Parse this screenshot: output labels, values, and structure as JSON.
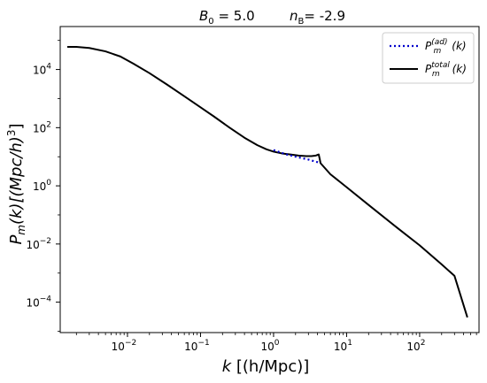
{
  "chart_data": {
    "type": "line",
    "title": {
      "left_symbol": "B",
      "left_sub": "0",
      "left_rest": " = 5.0",
      "right_symbol": "n",
      "right_sub": "B",
      "right_rest": "= -2.9"
    },
    "xlabel": {
      "symbol": "k",
      "units": "[(h/Mpc)]"
    },
    "ylabel": {
      "symbol": "P",
      "sub": "m",
      "text": "(k)[(Mpc/h)",
      "sup": "3",
      "end": "]"
    },
    "x_scale": "log",
    "y_scale": "log",
    "xlim": [
      0.0012,
      650
    ],
    "ylim": [
      9e-06,
      300000
    ],
    "x_ticks": [
      {
        "value": 0.01,
        "base": "10",
        "exp": "−2"
      },
      {
        "value": 0.1,
        "base": "10",
        "exp": "−1"
      },
      {
        "value": 1,
        "base": "10",
        "exp": "0"
      },
      {
        "value": 10,
        "base": "10",
        "exp": "1"
      },
      {
        "value": 100,
        "base": "10",
        "exp": "2"
      }
    ],
    "y_ticks": [
      {
        "value": 0.0001,
        "base": "10",
        "exp": "−4"
      },
      {
        "value": 0.01,
        "base": "10",
        "exp": "−2"
      },
      {
        "value": 1,
        "base": "10",
        "exp": "0"
      },
      {
        "value": 100,
        "base": "10",
        "exp": "2"
      },
      {
        "value": 10000,
        "base": "10",
        "exp": "4"
      }
    ],
    "legend_position": "top-right",
    "series": [
      {
        "name_base": "P",
        "name_sub": "m",
        "name_sup": "(ad)",
        "name_end": "(k)",
        "color": "#0000cc",
        "style": "dotted",
        "x": [
          1.0,
          1.5,
          2.2,
          3.0,
          4.0,
          4.4
        ],
        "y": [
          17,
          12,
          9.5,
          8,
          6.5,
          6
        ]
      },
      {
        "name_base": "P",
        "name_sub": "m",
        "name_sup": "total",
        "name_end": "(k)",
        "color": "#000000",
        "style": "solid",
        "x": [
          0.0015,
          0.002,
          0.003,
          0.005,
          0.008,
          0.012,
          0.02,
          0.035,
          0.06,
          0.1,
          0.15,
          0.25,
          0.4,
          0.6,
          0.8,
          1.0,
          1.3,
          1.7,
          2.2,
          2.8,
          3.3,
          3.8,
          4.15,
          4.3,
          4.4,
          6,
          10,
          20,
          50,
          100,
          200,
          300,
          450
        ],
        "y": [
          60000,
          60000,
          55000,
          42000,
          28000,
          16000,
          7500,
          3000,
          1200,
          500,
          250,
          100,
          45,
          25,
          18,
          15,
          13,
          12,
          11,
          10.5,
          10.5,
          11,
          12,
          8,
          6,
          2.5,
          0.9,
          0.22,
          0.035,
          0.009,
          0.002,
          0.0008,
          3e-05
        ]
      }
    ]
  }
}
